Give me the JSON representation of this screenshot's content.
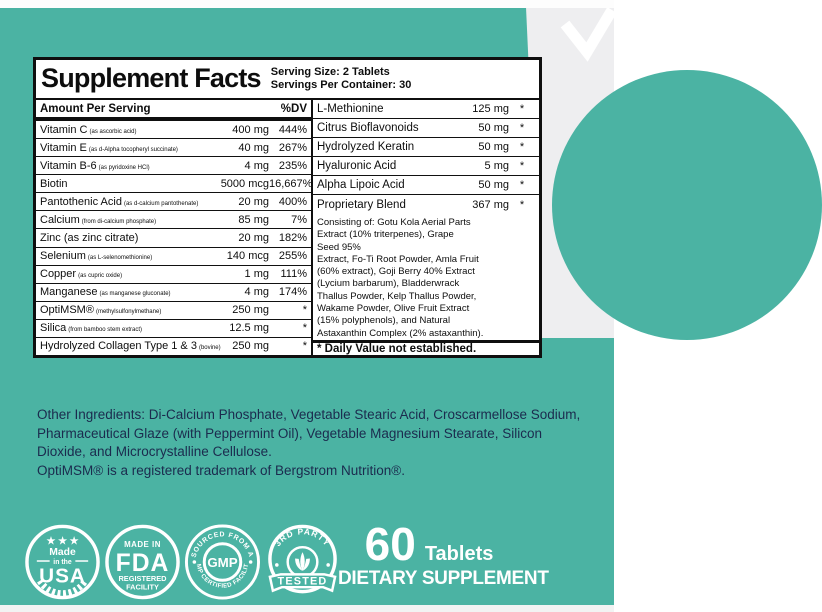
{
  "colors": {
    "teal": "#4bb3a3",
    "navy": "#1b2b4e",
    "gray": "#eeeef0",
    "panel_border": "#0f0f0f"
  },
  "panel": {
    "title": "Supplement Facts",
    "serving_size": "Serving Size: 2 Tablets",
    "servings_per_container": "Servings Per Container: 30",
    "left_header": {
      "amount_per_serving": "Amount Per Serving",
      "dv": "%DV"
    },
    "left_rows": [
      {
        "name": "Vitamin C",
        "sub": "(as ascorbic acid)",
        "amount": "400 mg",
        "dv": "444%"
      },
      {
        "name": "Vitamin E",
        "sub": "(as d-Alpha tocopheryl succinate)",
        "amount": "40 mg",
        "dv": "267%"
      },
      {
        "name": "Vitamin B-6",
        "sub": "(as pyridoxine HCl)",
        "amount": "4 mg",
        "dv": "235%"
      },
      {
        "name": "Biotin",
        "sub": "",
        "amount": "5000 mcg",
        "dv": "16,667%"
      },
      {
        "name": "Pantothenic Acid",
        "sub": "(as d-calcium pantothenate)",
        "amount": "20 mg",
        "dv": "400%"
      },
      {
        "name": "Calcium",
        "sub": "(from di-calcium phosphate)",
        "amount": "85 mg",
        "dv": "7%"
      },
      {
        "name": "Zinc (as zinc citrate)",
        "sub": "",
        "amount": "20 mg",
        "dv": "182%"
      },
      {
        "name": "Selenium",
        "sub": "(as L-selenomethionine)",
        "amount": "140 mcg",
        "dv": "255%"
      },
      {
        "name": "Copper",
        "sub": "(as cupric oxide)",
        "amount": "1 mg",
        "dv": "111%"
      },
      {
        "name": "Manganese",
        "sub": "(as manganese gluconate)",
        "amount": "4 mg",
        "dv": "174%"
      },
      {
        "name": "OptiMSM®",
        "sub": "(methylsulfonylmethane)",
        "amount": "250 mg",
        "dv": "*"
      },
      {
        "name": "Silica",
        "sub": "(from bamboo stem extract)",
        "amount": "12.5 mg",
        "dv": "*"
      },
      {
        "name": "Hydrolyzed Collagen Type 1 & 3",
        "sub": "(bovine)",
        "amount": "250 mg",
        "dv": "*"
      }
    ],
    "right_rows": [
      {
        "name": "L-Methionine",
        "amount": "125 mg",
        "dv": "*"
      },
      {
        "name": "Citrus Bioflavonoids",
        "amount": "50 mg",
        "dv": "*"
      },
      {
        "name": "Hydrolyzed Keratin",
        "amount": "50 mg",
        "dv": "*"
      },
      {
        "name": "Hyaluronic Acid",
        "amount": "5 mg",
        "dv": "*"
      },
      {
        "name": "Alpha Lipoic Acid",
        "amount": "50 mg",
        "dv": "*"
      },
      {
        "name": "Proprietary Blend",
        "amount": "367 mg",
        "dv": "*"
      }
    ],
    "blend_description": "Consisting of: Gotu Kola Aerial Parts\nExtract (10% triterpenes), Grape\nSeed 95%\nExtract, Fo-Ti Root Powder, Amla Fruit\n(60% extract), Goji Berry 40% Extract\n(Lycium barbarum), Bladderwrack\nThallus Powder, Kelp Thallus Powder,\nWakame Powder, Olive Fruit Extract\n(15% polyphenols), and Natural\nAstaxanthin Complex (2% astaxanthin).",
    "footnote": "* Daily Value not established."
  },
  "other_ingredients": "Other Ingredients: Di-Calcium Phosphate, Vegetable Stearic Acid, Croscarmellose Sodium,\nPharmaceutical Glaze (with Peppermint Oil), Vegetable Magnesium Stearate, Silicon\nDioxide, and Microcrystalline Cellulose.\nOptiMSM® is a registered trademark of Bergstrom Nutrition®.",
  "badges": {
    "usa": {
      "stars": "★ ★ ★",
      "line1": "Made",
      "line2": "in the",
      "line3": "USA"
    },
    "fda": {
      "top": "MADE IN",
      "main": "FDA",
      "sub1": "REGISTERED",
      "sub2": "FACILITY"
    },
    "gmp": {
      "arc_top": "SOURCED FROM A",
      "center": "GMP",
      "arc_bottom": "GMP CERTIFIED FACILITY"
    },
    "tested": {
      "arc_top": "3RD PARTY",
      "banner": "TESTED"
    }
  },
  "pack": {
    "count": "60",
    "unit": "Tablets",
    "type": "DIETARY SUPPLEMENT"
  }
}
